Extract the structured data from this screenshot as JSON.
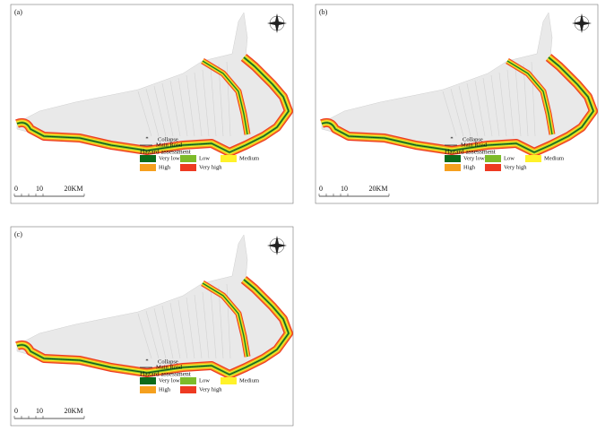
{
  "panels": [
    {
      "label": "(a)",
      "legend": {
        "collapse": "Collapse",
        "road": "Main Road",
        "title": "Hazard assessment",
        "classes": [
          {
            "name": "Very low",
            "color": "#0b6b1a"
          },
          {
            "name": "Low",
            "color": "#7dbb2a"
          },
          {
            "name": "Medium",
            "color": "#fff22a"
          },
          {
            "name": "High",
            "color": "#f5a01e"
          },
          {
            "name": "Very high",
            "color": "#ee3a22"
          }
        ]
      },
      "scale": [
        "0",
        "10",
        "20KM"
      ]
    },
    {
      "label": "(b)",
      "legend": {
        "collapse": "Collapse",
        "road": "Main Road",
        "title": "Hazard assessment",
        "classes": [
          {
            "name": "Very low",
            "color": "#0b6b1a"
          },
          {
            "name": "Low",
            "color": "#7dbb2a"
          },
          {
            "name": "Medium",
            "color": "#fff22a"
          },
          {
            "name": "High",
            "color": "#f5a01e"
          },
          {
            "name": "Very high",
            "color": "#ee3a22"
          }
        ]
      },
      "scale": [
        "0",
        "10",
        "20KM"
      ]
    },
    {
      "label": "(c)",
      "legend": {
        "collapse": "Collapse",
        "road": "Main Road",
        "title": "Hazard assessment",
        "classes": [
          {
            "name": "Very low",
            "color": "#0b6b1a"
          },
          {
            "name": "Low",
            "color": "#7dbb2a"
          },
          {
            "name": "Medium",
            "color": "#fff22a"
          },
          {
            "name": "High",
            "color": "#f5a01e"
          },
          {
            "name": "Very high",
            "color": "#ee3a22"
          }
        ]
      },
      "scale": [
        "0",
        "10",
        "20KM"
      ]
    }
  ]
}
